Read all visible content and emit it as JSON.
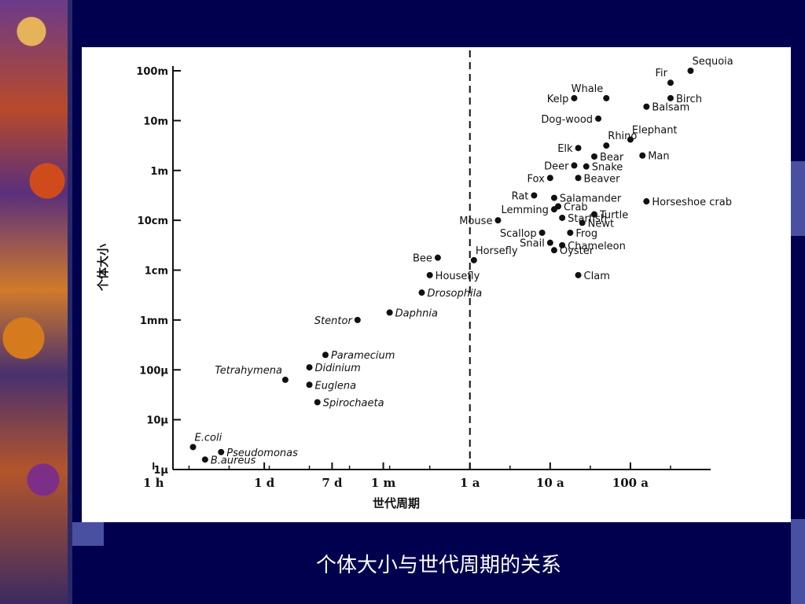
{
  "slide": {
    "caption": "个体大小与世代周期的关系"
  },
  "chart_data": {
    "type": "scatter",
    "xlabel": "世代周期",
    "ylabel": "个体大小",
    "x_ticks": [
      "1 h",
      "1 d",
      "7 d",
      "1 m",
      "1 a",
      "10 a",
      "100 a"
    ],
    "y_ticks": [
      "1μ",
      "10μ",
      "100μ",
      "1mm",
      "1cm",
      "10cm",
      "1m",
      "10m",
      "100m"
    ],
    "reference_line": "1 a",
    "points": [
      {
        "name": "Sequoia",
        "x": 2.75,
        "y": 2.0
      },
      {
        "name": "Fir",
        "x": 2.5,
        "y": 1.76
      },
      {
        "name": "Whale",
        "x": 1.7,
        "y": 1.45
      },
      {
        "name": "Kelp",
        "x": 1.3,
        "y": 1.45
      },
      {
        "name": "Birch",
        "x": 2.5,
        "y": 1.45
      },
      {
        "name": "Balsam",
        "x": 2.2,
        "y": 1.28
      },
      {
        "name": "Dog-wood",
        "x": 1.6,
        "y": 1.04
      },
      {
        "name": "Elephant",
        "x": 2.0,
        "y": 0.62
      },
      {
        "name": "Rhino",
        "x": 1.7,
        "y": 0.5
      },
      {
        "name": "Elk",
        "x": 1.35,
        "y": 0.45
      },
      {
        "name": "Bear",
        "x": 1.55,
        "y": 0.28
      },
      {
        "name": "Man",
        "x": 2.15,
        "y": 0.3
      },
      {
        "name": "Deer",
        "x": 1.3,
        "y": 0.1
      },
      {
        "name": "Snake",
        "x": 1.45,
        "y": 0.08
      },
      {
        "name": "Fox",
        "x": 1.0,
        "y": -0.15
      },
      {
        "name": "Beaver",
        "x": 1.35,
        "y": -0.15
      },
      {
        "name": "Rat",
        "x": 0.8,
        "y": -0.5
      },
      {
        "name": "Salamander",
        "x": 1.05,
        "y": -0.55
      },
      {
        "name": "Horseshoe crab",
        "x": 2.2,
        "y": -0.62
      },
      {
        "name": "Crab",
        "x": 1.1,
        "y": -0.72
      },
      {
        "name": "Lemming",
        "x": 1.05,
        "y": -0.78
      },
      {
        "name": "Mouse",
        "x": 0.35,
        "y": -1.0
      },
      {
        "name": "Starfish",
        "x": 1.15,
        "y": -0.95
      },
      {
        "name": "Turtle",
        "x": 1.55,
        "y": -0.88
      },
      {
        "name": "Newt",
        "x": 1.4,
        "y": -1.05
      },
      {
        "name": "Scallop",
        "x": 0.9,
        "y": -1.25
      },
      {
        "name": "Frog",
        "x": 1.25,
        "y": -1.25
      },
      {
        "name": "Snail",
        "x": 1.0,
        "y": -1.45
      },
      {
        "name": "Chameleon",
        "x": 1.15,
        "y": -1.5
      },
      {
        "name": "Oyster",
        "x": 1.05,
        "y": -1.6
      },
      {
        "name": "Bee",
        "x": -0.4,
        "y": -1.75
      },
      {
        "name": "Horsefly",
        "x": 0.05,
        "y": -1.8
      },
      {
        "name": "Clam",
        "x": 1.35,
        "y": -2.1
      },
      {
        "name": "Housefly",
        "x": -0.5,
        "y": -2.1
      },
      {
        "name": "Drosophila",
        "x": -0.6,
        "y": -2.45
      },
      {
        "name": "Stentor",
        "x": -1.4,
        "y": -3.0
      },
      {
        "name": "Daphnia",
        "x": -1.0,
        "y": -2.85
      },
      {
        "name": "Paramecium",
        "x": -1.8,
        "y": -3.7
      },
      {
        "name": "Didinium",
        "x": -2.0,
        "y": -3.95
      },
      {
        "name": "Tetrahymena",
        "x": -2.3,
        "y": -4.2
      },
      {
        "name": "Euglena",
        "x": -2.0,
        "y": -4.3
      },
      {
        "name": "Spirochaeta",
        "x": -1.9,
        "y": -4.65
      },
      {
        "name": "E.coli",
        "x": -3.45,
        "y": -5.55
      },
      {
        "name": "Pseudomonas",
        "x": -3.1,
        "y": -5.65
      },
      {
        "name": "B.aureus",
        "x": -3.3,
        "y": -5.8
      }
    ]
  }
}
